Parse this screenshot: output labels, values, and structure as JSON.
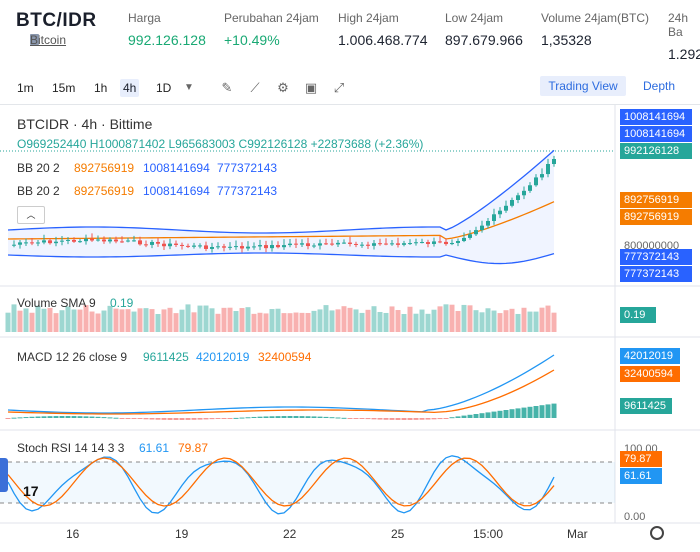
{
  "header": {
    "pair": "BTC/IDR",
    "coin_link": "Bitcoin",
    "stats": [
      {
        "label": "Harga",
        "value": "992.126.128",
        "green": true
      },
      {
        "label": "Perubahan 24jam",
        "value": "+10.49%",
        "green": true
      },
      {
        "label": "High 24jam",
        "value": "1.006.468.774",
        "green": false
      },
      {
        "label": "Low 24jam",
        "value": "897.679.966",
        "green": false
      },
      {
        "label": "Volume 24jam(BTC)",
        "value": "1,35328",
        "green": false
      },
      {
        "label": "24h Ba",
        "value": "1.292",
        "green": false
      }
    ]
  },
  "toolbar": {
    "timeframes": [
      "1m",
      "15m",
      "1h",
      "4h",
      "1D"
    ],
    "active_timeframe": "4h",
    "trading_view": "Trading View",
    "depth": "Depth"
  },
  "legend": {
    "title": "BTCIDR · 4h · Bittime",
    "ohlc": "O969252440 H1000871402 L965683003 C992126128 +22873688 (+2.36%)",
    "bb1_name": "BB 20 2",
    "bb1_a": "892756919",
    "bb1_b": "1008141694",
    "bb1_c": "777372143",
    "bb2_name": "BB 20 2",
    "bb2_a": "892756919",
    "bb2_b": "1008141694",
    "bb2_c": "777372143",
    "volume_name": "Volume SMA 9",
    "volume_val": "0.19",
    "macd_name": "MACD 12 26 close 9",
    "macd_a": "9611425",
    "macd_b": "42012019",
    "macd_c": "32400594",
    "stoch_name": "Stoch RSI 14 14 3 3",
    "stoch_a": "61.61",
    "stoch_b": "79.87"
  },
  "price_axis": {
    "upper1": "1008141694",
    "upper2": "1008141694",
    "last": "992126128",
    "basis1": "892756919",
    "basis2": "892756919",
    "tick_800": "800000000",
    "lower1": "777372143",
    "lower2": "777372143",
    "vol": "0.19",
    "macd_line": "42012019",
    "macd_signal": "32400594",
    "macd_hist": "9611425",
    "stoch_100": "100.00",
    "stoch_k": "79.87",
    "stoch_d": "61.61",
    "stoch_0": "0.00"
  },
  "x_axis": [
    "16",
    "19",
    "22",
    "25",
    "15:00",
    "Mar"
  ],
  "colors": {
    "up": "#26a69a",
    "down": "#ef5350",
    "bb_basis": "#f57c00",
    "bb_band": "#2962ff",
    "macd_line": "#2196f3",
    "macd_signal": "#ff6d00",
    "price_tag": "#26a69a"
  }
}
